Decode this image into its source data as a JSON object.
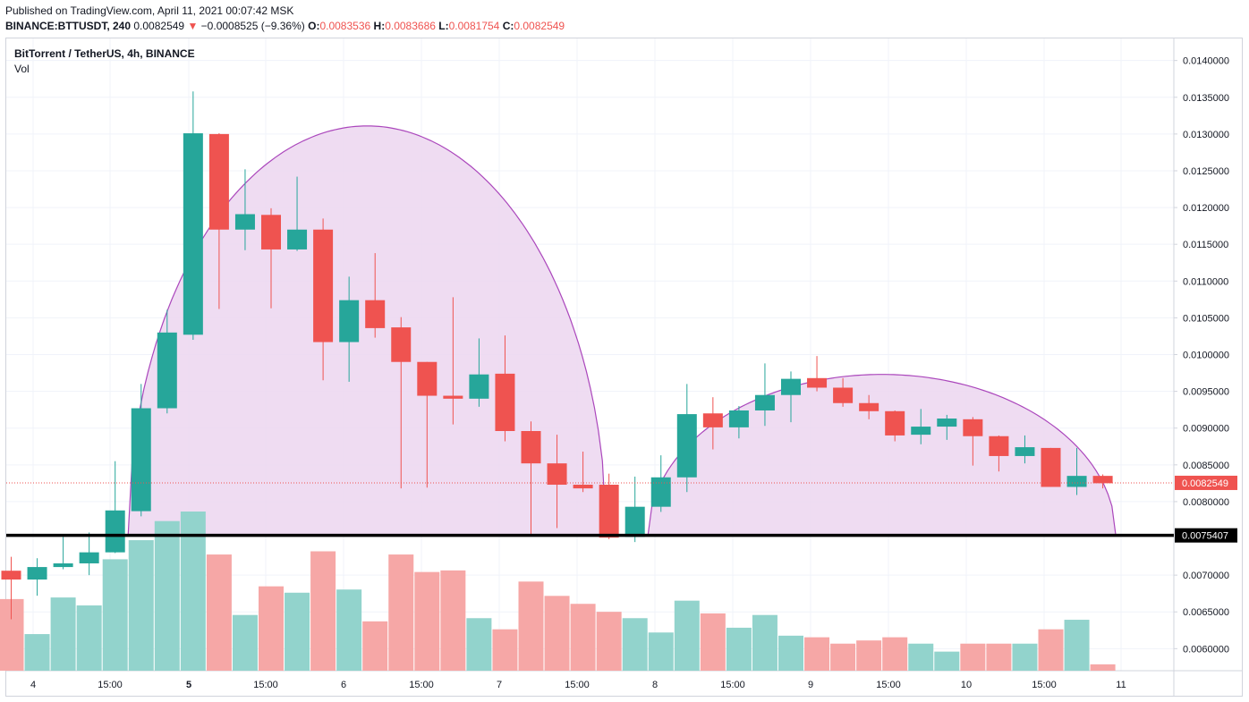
{
  "header": {
    "published": "Published on TradingView.com, April 11, 2021 00:07:42 MSK",
    "symbol": "BINANCE:BTTUSDT, 240",
    "last": "0.0082549",
    "change": "−0.0008525 (−9.36%)",
    "o_label": "O:",
    "o_value": "0.0083536",
    "h_label": "H:",
    "h_value": "0.0083686",
    "l_label": "L:",
    "l_value": "0.0081754",
    "c_label": "C:",
    "c_value": "0.0082549"
  },
  "legend": {
    "title": "BitTorrent / TetherUS, 4h, BINANCE",
    "volume": "Vol"
  },
  "colors": {
    "up": "#26a69a",
    "down": "#ef5350",
    "up_vol": "#92d3cc",
    "down_vol": "#f6a7a6",
    "fill": "#ecd6f0",
    "arc": "#ab47bc",
    "support": "#000000"
  },
  "chart_data": {
    "type": "candlestick",
    "y_ticks": [
      "0.0140000",
      "0.0135000",
      "0.0130000",
      "0.0125000",
      "0.0120000",
      "0.0115000",
      "0.0110000",
      "0.0105000",
      "0.0100000",
      "0.0095000",
      "0.0090000",
      "0.0085000",
      "0.0080000",
      "0.0070000",
      "0.0065000",
      "0.0060000"
    ],
    "ylim": [
      0.0057,
      0.0143
    ],
    "x_ticks": [
      "4",
      "15:00",
      "5",
      "15:00",
      "6",
      "15:00",
      "7",
      "15:00",
      "8",
      "15:00",
      "9",
      "15:00",
      "10",
      "15:00",
      "11"
    ],
    "x_ticks_bold": [
      false,
      false,
      true,
      false,
      false,
      false,
      false,
      false,
      false,
      false,
      false,
      false,
      false,
      false,
      false
    ],
    "candles": [
      {
        "o": 0.00706,
        "h": 0.00725,
        "l": 0.0064,
        "c": 0.00694
      },
      {
        "o": 0.00694,
        "h": 0.00723,
        "l": 0.00672,
        "c": 0.00711
      },
      {
        "o": 0.00711,
        "h": 0.00752,
        "l": 0.00708,
        "c": 0.00716
      },
      {
        "o": 0.00716,
        "h": 0.00758,
        "l": 0.007,
        "c": 0.00731
      },
      {
        "o": 0.00731,
        "h": 0.00855,
        "l": 0.0073,
        "c": 0.00788
      },
      {
        "o": 0.00787,
        "h": 0.0096,
        "l": 0.0078,
        "c": 0.00927
      },
      {
        "o": 0.00927,
        "h": 0.01061,
        "l": 0.0092,
        "c": 0.0103
      },
      {
        "o": 0.01027,
        "h": 0.01358,
        "l": 0.0102,
        "c": 0.01301
      },
      {
        "o": 0.013,
        "h": 0.01301,
        "l": 0.01062,
        "c": 0.0117
      },
      {
        "o": 0.0117,
        "h": 0.01252,
        "l": 0.01142,
        "c": 0.01191
      },
      {
        "o": 0.0119,
        "h": 0.01199,
        "l": 0.01063,
        "c": 0.01143
      },
      {
        "o": 0.01143,
        "h": 0.01242,
        "l": 0.01141,
        "c": 0.0117
      },
      {
        "o": 0.0117,
        "h": 0.01185,
        "l": 0.00965,
        "c": 0.01017
      },
      {
        "o": 0.01017,
        "h": 0.01106,
        "l": 0.00963,
        "c": 0.01074
      },
      {
        "o": 0.01074,
        "h": 0.01138,
        "l": 0.01023,
        "c": 0.01036
      },
      {
        "o": 0.01037,
        "h": 0.01051,
        "l": 0.00818,
        "c": 0.0099
      },
      {
        "o": 0.0099,
        "h": 0.0099,
        "l": 0.00819,
        "c": 0.00944
      },
      {
        "o": 0.00944,
        "h": 0.01078,
        "l": 0.00905,
        "c": 0.0094
      },
      {
        "o": 0.0094,
        "h": 0.01022,
        "l": 0.00929,
        "c": 0.00973
      },
      {
        "o": 0.00974,
        "h": 0.01026,
        "l": 0.00882,
        "c": 0.00896
      },
      {
        "o": 0.00896,
        "h": 0.00909,
        "l": 0.00754,
        "c": 0.00852
      },
      {
        "o": 0.00852,
        "h": 0.00891,
        "l": 0.00764,
        "c": 0.00823
      },
      {
        "o": 0.00823,
        "h": 0.00868,
        "l": 0.00813,
        "c": 0.00818
      },
      {
        "o": 0.00823,
        "h": 0.00838,
        "l": 0.00749,
        "c": 0.00751
      },
      {
        "o": 0.00752,
        "h": 0.00834,
        "l": 0.00745,
        "c": 0.00793
      },
      {
        "o": 0.00793,
        "h": 0.00863,
        "l": 0.00786,
        "c": 0.00833
      },
      {
        "o": 0.00833,
        "h": 0.0096,
        "l": 0.00813,
        "c": 0.00919
      },
      {
        "o": 0.0092,
        "h": 0.00942,
        "l": 0.00871,
        "c": 0.00901
      },
      {
        "o": 0.00901,
        "h": 0.0093,
        "l": 0.00886,
        "c": 0.00924
      },
      {
        "o": 0.00924,
        "h": 0.00988,
        "l": 0.00903,
        "c": 0.00945
      },
      {
        "o": 0.00945,
        "h": 0.00977,
        "l": 0.00908,
        "c": 0.00967
      },
      {
        "o": 0.00968,
        "h": 0.00998,
        "l": 0.0095,
        "c": 0.00955
      },
      {
        "o": 0.00955,
        "h": 0.00968,
        "l": 0.00929,
        "c": 0.00934
      },
      {
        "o": 0.00934,
        "h": 0.00945,
        "l": 0.00912,
        "c": 0.00923
      },
      {
        "o": 0.00923,
        "h": 0.00924,
        "l": 0.00882,
        "c": 0.0089
      },
      {
        "o": 0.00891,
        "h": 0.00926,
        "l": 0.00878,
        "c": 0.00902
      },
      {
        "o": 0.00902,
        "h": 0.00918,
        "l": 0.00884,
        "c": 0.00913
      },
      {
        "o": 0.00912,
        "h": 0.00915,
        "l": 0.00849,
        "c": 0.00889
      },
      {
        "o": 0.00889,
        "h": 0.0089,
        "l": 0.00841,
        "c": 0.00862
      },
      {
        "o": 0.00862,
        "h": 0.0089,
        "l": 0.00852,
        "c": 0.00874
      },
      {
        "o": 0.00873,
        "h": 0.00873,
        "l": 0.0082,
        "c": 0.0082
      },
      {
        "o": 0.0082,
        "h": 0.00873,
        "l": 0.00809,
        "c": 0.00835
      },
      {
        "o": 0.00835,
        "h": 0.00837,
        "l": 0.00818,
        "c": 0.00825
      }
    ],
    "volume_relative": [
      0.45,
      0.23,
      0.46,
      0.41,
      0.7,
      0.82,
      0.94,
      1.0,
      0.73,
      0.35,
      0.53,
      0.49,
      0.75,
      0.51,
      0.31,
      0.73,
      0.62,
      0.63,
      0.33,
      0.26,
      0.56,
      0.47,
      0.42,
      0.37,
      0.33,
      0.24,
      0.44,
      0.36,
      0.27,
      0.35,
      0.22,
      0.21,
      0.17,
      0.19,
      0.21,
      0.17,
      0.12,
      0.17,
      0.17,
      0.17,
      0.26,
      0.32,
      0.04
    ],
    "last_price": "0.0082549",
    "last_price_value": 0.0082549,
    "support_price": "0.0075407",
    "support_price_value": 0.0075407,
    "cup_arcs": [
      {
        "start_bar": 4.5,
        "end_bar": 22.9,
        "peak_value": 0.01311,
        "base_value": 0.0075407
      },
      {
        "start_bar": 24.5,
        "end_bar": 42.5,
        "peak_value": 0.00973,
        "base_value": 0.0075407
      }
    ]
  }
}
